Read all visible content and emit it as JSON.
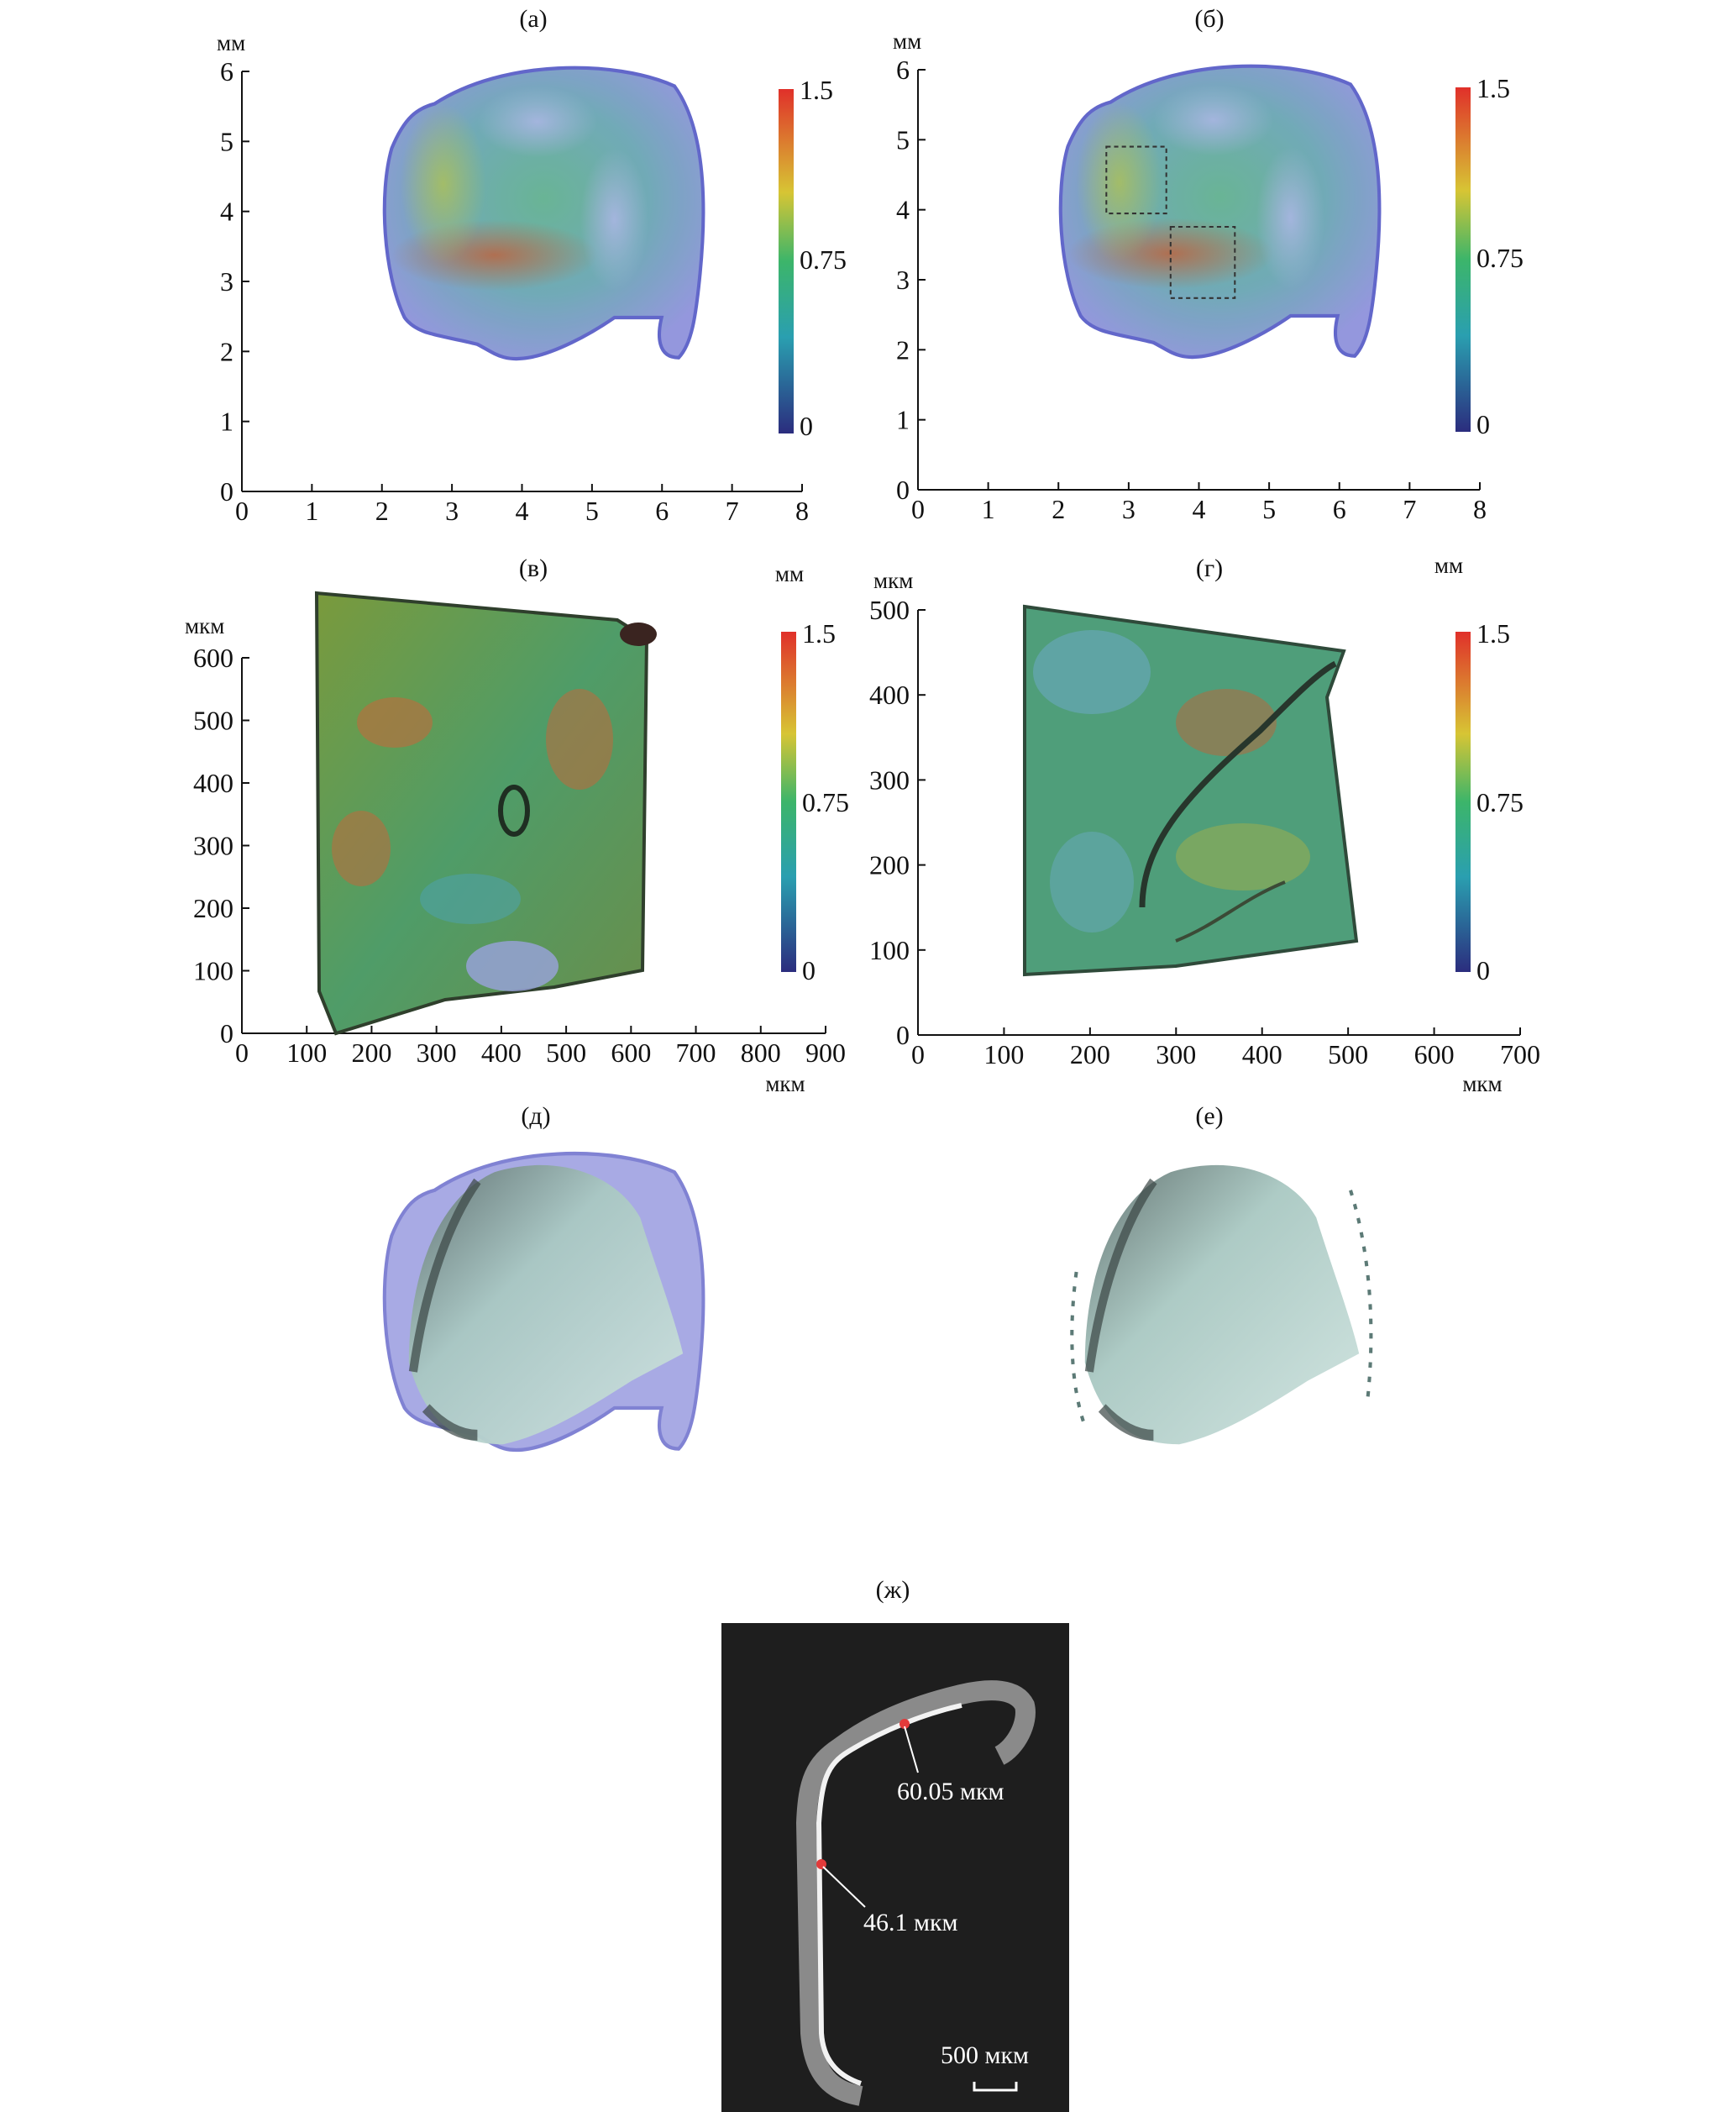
{
  "figure": {
    "panels": {
      "a": {
        "label": "(а)",
        "unit_y": "мм",
        "x_ticks": [
          "0",
          "1",
          "2",
          "3",
          "4",
          "5",
          "6",
          "7",
          "8"
        ],
        "y_ticks": [
          "0",
          "1",
          "2",
          "3",
          "4",
          "5",
          "6"
        ],
        "colorbar": {
          "max": "1.5",
          "mid": "0.75",
          "min": "0"
        }
      },
      "b": {
        "label": "(б)",
        "unit_y": "мм",
        "x_ticks": [
          "0",
          "1",
          "2",
          "3",
          "4",
          "5",
          "6",
          "7",
          "8"
        ],
        "y_ticks": [
          "0",
          "1",
          "2",
          "3",
          "4",
          "5",
          "6"
        ],
        "colorbar": {
          "max": "1.5",
          "mid": "0.75",
          "min": "0"
        }
      },
      "v": {
        "label": "(в)",
        "unit_y": "мкм",
        "unit_x": "мкм",
        "unit_cb": "мм",
        "x_ticks": [
          "0",
          "100",
          "200",
          "300",
          "400",
          "500",
          "600",
          "700",
          "800",
          "900"
        ],
        "y_ticks": [
          "0",
          "100",
          "200",
          "300",
          "400",
          "500",
          "600"
        ],
        "colorbar": {
          "max": "1.5",
          "mid": "0.75",
          "min": "0"
        }
      },
      "g": {
        "label": "(г)",
        "unit_y": "мкм",
        "unit_x": "мкм",
        "unit_cb": "мм",
        "x_ticks": [
          "0",
          "100",
          "200",
          "300",
          "400",
          "500",
          "600",
          "700"
        ],
        "y_ticks": [
          "0",
          "100",
          "200",
          "300",
          "400",
          "500"
        ],
        "colorbar": {
          "max": "1.5",
          "mid": "0.75",
          "min": "0"
        }
      },
      "d": {
        "label": "(д)"
      },
      "e": {
        "label": "(е)"
      },
      "zh": {
        "label": "(ж)",
        "measure1": "60.05 мкм",
        "measure2": "46.1 мкм",
        "scalebar": "500 мкм"
      }
    },
    "colors": {
      "cb_top": "#e0302a",
      "cb_upper": "#d7c534",
      "cb_mid": "#3cb56a",
      "cb_lower": "#2a9fb0",
      "cb_bottom": "#2b2d7e",
      "tissue_blue": "#8e90d8",
      "surface": "#b9d6d0",
      "ct_background": "#1e1e1e"
    }
  }
}
